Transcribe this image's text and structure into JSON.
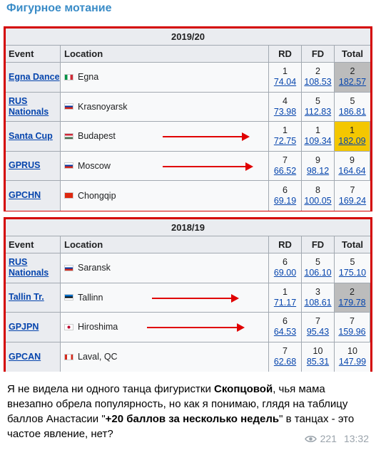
{
  "channel": {
    "title": "Фигурное мотание"
  },
  "headers": {
    "event": "Event",
    "location": "Location",
    "rd": "RD",
    "fd": "FD",
    "total": "Total"
  },
  "season_2019": {
    "title": "2019/20",
    "rows": [
      {
        "event": "Egna Dance",
        "flag": "italy",
        "location": "Egna",
        "rd_place": "1",
        "rd_pts": "74.04",
        "fd_place": "2",
        "fd_pts": "108.53",
        "total_place": "2",
        "total_pts": "182.57",
        "medal": "silver"
      },
      {
        "event": "RUS Nationals",
        "flag": "russia",
        "location": "Krasnoyarsk",
        "rd_place": "4",
        "rd_pts": "73.98",
        "fd_place": "5",
        "fd_pts": "112.83",
        "total_place": "5",
        "total_pts": "186.81",
        "medal": ""
      },
      {
        "event": "Santa Cup",
        "flag": "hungary",
        "location": "Budapest",
        "rd_place": "1",
        "rd_pts": "72.75",
        "fd_place": "1",
        "fd_pts": "109.34",
        "total_place": "1",
        "total_pts": "182.09",
        "medal": "gold"
      },
      {
        "event": "GPRUS",
        "flag": "russia",
        "location": "Moscow",
        "rd_place": "7",
        "rd_pts": "66.52",
        "fd_place": "9",
        "fd_pts": "98.12",
        "total_place": "9",
        "total_pts": "164.64",
        "medal": ""
      },
      {
        "event": "GPCHN",
        "flag": "china",
        "location": "Chongqip",
        "rd_place": "6",
        "rd_pts": "69.19",
        "fd_place": "8",
        "fd_pts": "100.05",
        "total_place": "7",
        "total_pts": "169.24",
        "medal": ""
      }
    ]
  },
  "season_2018": {
    "title": "2018/19",
    "rows": [
      {
        "event": "RUS Nationals",
        "flag": "russia",
        "location": "Saransk",
        "rd_place": "6",
        "rd_pts": "69.00",
        "fd_place": "5",
        "fd_pts": "106.10",
        "total_place": "5",
        "total_pts": "175.10",
        "medal": ""
      },
      {
        "event": "Tallin Tr.",
        "flag": "estonia",
        "location": "Tallinn",
        "rd_place": "1",
        "rd_pts": "71.17",
        "fd_place": "3",
        "fd_pts": "108.61",
        "total_place": "2",
        "total_pts": "179.78",
        "medal": "silver"
      },
      {
        "event": "GPJPN",
        "flag": "japan",
        "location": "Hiroshima",
        "rd_place": "6",
        "rd_pts": "64.53",
        "fd_place": "7",
        "fd_pts": "95.43",
        "total_place": "7",
        "total_pts": "159.96",
        "medal": ""
      },
      {
        "event": "GPCAN",
        "flag": "canada",
        "location": "Laval, QC",
        "rd_place": "7",
        "rd_pts": "62.68",
        "fd_place": "10",
        "fd_pts": "85.31",
        "total_place": "10",
        "total_pts": "147.99",
        "medal": ""
      }
    ]
  },
  "message": {
    "part1": "Я не видела ни одного танца фигуристки ",
    "bold1": "Скопцовой",
    "part2": ", чья мама внезапно обрела популярность, но как я понимаю, глядя на таблицу баллов Анастасии \"",
    "bold2": "+20 баллов за несколько недель",
    "part3": "\" в танцах - это частое явление, нет?"
  },
  "meta": {
    "views": "221",
    "time": "13:32"
  },
  "colors": {
    "channel": "#3a8cc7",
    "border": "#d40000",
    "arrow": "#e00000",
    "gold": "#f4c700",
    "silver": "#bcbcbc",
    "link": "#0645ad"
  }
}
